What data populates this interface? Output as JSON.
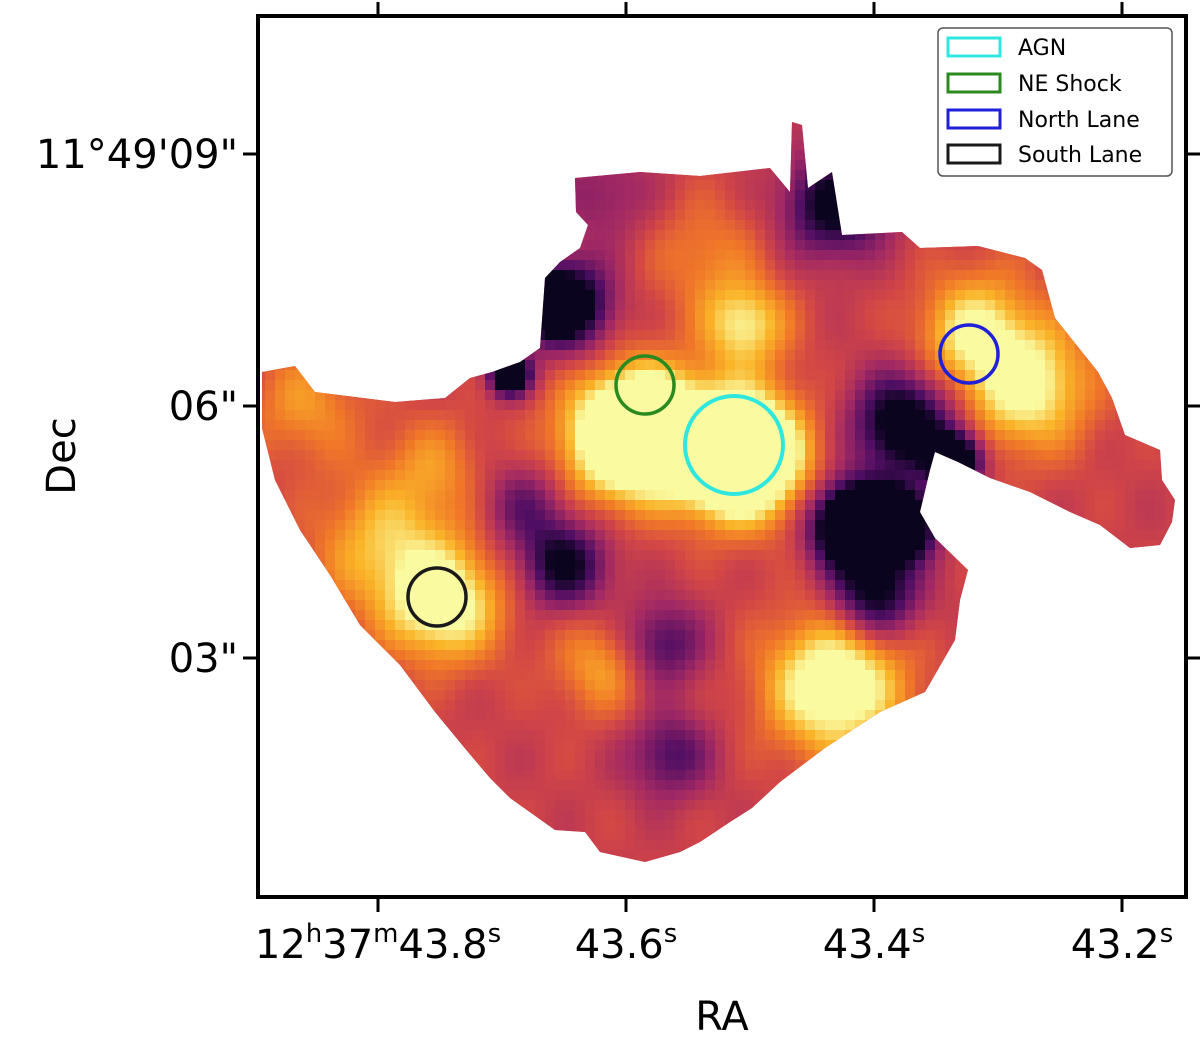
{
  "axes": {
    "xlabel": "RA",
    "ylabel": "Dec",
    "x_ticks": [
      {
        "base": "12",
        "h": "h",
        "mid": "37",
        "m": "m",
        "sec": "43.8",
        "s": "s"
      },
      {
        "base": "",
        "h": "",
        "mid": "",
        "m": "",
        "sec": "43.6",
        "s": "s"
      },
      {
        "base": "",
        "h": "",
        "mid": "",
        "m": "",
        "sec": "43.4",
        "s": "s"
      },
      {
        "base": "",
        "h": "",
        "mid": "",
        "m": "",
        "sec": "43.2",
        "s": "s"
      }
    ],
    "y_ticks": [
      "11°49'09\"",
      "06\"",
      "03\""
    ]
  },
  "legend": {
    "placement": "top-right",
    "entries": [
      {
        "label": "AGN",
        "color": "#2ee8e0"
      },
      {
        "label": "NE Shock",
        "color": "#2a8a1e"
      },
      {
        "label": "North Lane",
        "color": "#2020d8"
      },
      {
        "label": "South Lane",
        "color": "#1a1a1a"
      }
    ]
  },
  "regions": [
    {
      "name": "AGN",
      "color": "#2ee8e0"
    },
    {
      "name": "NE Shock",
      "color": "#2a8a1e"
    },
    {
      "name": "North Lane",
      "color": "#2020d8"
    },
    {
      "name": "South Lane",
      "color": "#1a1a1a"
    }
  ],
  "colormap": "inferno",
  "colors": {
    "frame": "#000000",
    "bright": "#f8f49a",
    "mid": "#e8722c",
    "dark": "#5a1268"
  }
}
